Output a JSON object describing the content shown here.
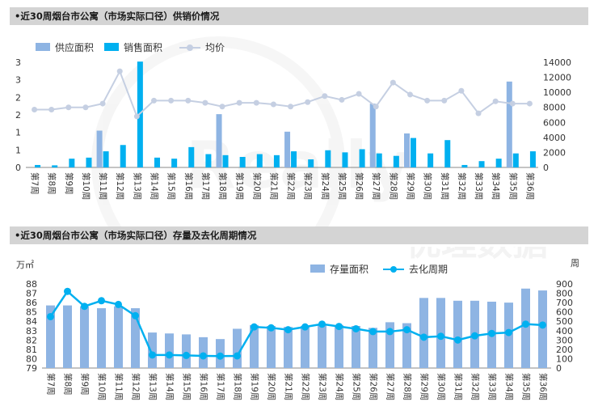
{
  "colors": {
    "supply": "#8eb4e3",
    "sales": "#00b0f0",
    "price": "#c5cfe2",
    "stock": "#8eb4e3",
    "cycle": "#00b0f0",
    "title_bg": "#d4d4d4",
    "watermark": "#eeeeee"
  },
  "watermark": {
    "brand": "Really",
    "cn": "优理数据"
  },
  "chart_data": [
    {
      "type": "bar",
      "title": "•近30周烟台市公寓（市场实际口径）供销价情况",
      "categories": [
        "第7周",
        "第8周",
        "第9周",
        "第10周",
        "第11周",
        "第12周",
        "第13周",
        "第14周",
        "第15周",
        "第16周",
        "第17周",
        "第18周",
        "第19周",
        "第20周",
        "第21周",
        "第22周",
        "第23周",
        "第24周",
        "第25周",
        "第26周",
        "第27周",
        "第28周",
        "第29周",
        "第30周",
        "第31周",
        "第32周",
        "第33周",
        "第34周",
        "第35周",
        "第36周"
      ],
      "left_axis": {
        "ticks": [
          "3",
          "3",
          "2",
          "2",
          "1",
          "1",
          "0"
        ],
        "ylim": [
          0,
          3
        ]
      },
      "right_axis": {
        "ticks": [
          "14000",
          "12000",
          "10000",
          "8000",
          "6000",
          "4000",
          "2000",
          "0"
        ],
        "ylim": [
          0,
          14000
        ]
      },
      "series": [
        {
          "name": "供应面积",
          "axis": "left",
          "type": "bar",
          "values": [
            0,
            0,
            0,
            0,
            1.05,
            0,
            0,
            0,
            0,
            0,
            0,
            1.52,
            0,
            0,
            0,
            1.02,
            0,
            0,
            0,
            0,
            1.82,
            0,
            0.97,
            0,
            0,
            0,
            0,
            0,
            2.45,
            0
          ]
        },
        {
          "name": "销售面积",
          "axis": "left",
          "type": "bar",
          "values": [
            0.07,
            0.06,
            0.25,
            0.28,
            0.46,
            0.64,
            3.02,
            0.28,
            0.25,
            0.58,
            0.38,
            0.35,
            0.3,
            0.38,
            0.35,
            0.46,
            0.23,
            0.49,
            0.43,
            0.52,
            0.4,
            0.33,
            0.84,
            0.4,
            0.78,
            0.07,
            0.18,
            0.25,
            0.4,
            0.46
          ]
        },
        {
          "name": "均价",
          "axis": "right",
          "type": "line",
          "values": [
            7700,
            7700,
            8000,
            8000,
            8500,
            12800,
            6800,
            8900,
            8900,
            8900,
            8600,
            8100,
            8600,
            8600,
            8400,
            8100,
            8700,
            9500,
            9000,
            9800,
            8100,
            11300,
            9700,
            8900,
            8900,
            10200,
            7200,
            8800,
            8500,
            8500
          ]
        }
      ]
    },
    {
      "type": "bar",
      "title": "•近30周烟台市公寓（市场实际口径）存量及去化周期情况",
      "unit_left": "万㎡",
      "unit_right": "周",
      "categories": [
        "第7周",
        "第8周",
        "第9周",
        "第10周",
        "第11周",
        "第12周",
        "第13周",
        "第14周",
        "第15周",
        "第16周",
        "第17周",
        "第18周",
        "第19周",
        "第20周",
        "第21周",
        "第22周",
        "第23周",
        "第24周",
        "第25周",
        "第26周",
        "第27周",
        "第28周",
        "第29周",
        "第30周",
        "第31周",
        "第32周",
        "第33周",
        "第34周",
        "第35周",
        "第36周"
      ],
      "left_axis": {
        "ticks": [
          "88",
          "87",
          "86",
          "85",
          "84",
          "83",
          "82",
          "81",
          "80",
          "79"
        ],
        "ylim": [
          79,
          88
        ]
      },
      "right_axis": {
        "ticks": [
          "900",
          "800",
          "700",
          "600",
          "500",
          "400",
          "300",
          "200",
          "100",
          "0"
        ],
        "ylim": [
          0,
          900
        ]
      },
      "series": [
        {
          "name": "存量面积",
          "axis": "left",
          "type": "bar",
          "values": [
            85.7,
            85.7,
            85.6,
            85.4,
            85.6,
            85.4,
            82.8,
            82.7,
            82.6,
            82.3,
            82.1,
            83.2,
            83.6,
            83.5,
            83.4,
            83.5,
            83.7,
            83.6,
            83.5,
            83.3,
            83.9,
            83.8,
            86.5,
            86.5,
            86.2,
            86.2,
            86.1,
            86.0,
            87.5,
            87.3
          ]
        },
        {
          "name": "去化周期",
          "axis": "right",
          "type": "line",
          "values": [
            550,
            820,
            660,
            720,
            680,
            560,
            140,
            140,
            135,
            130,
            128,
            130,
            440,
            430,
            410,
            440,
            470,
            445,
            420,
            390,
            390,
            410,
            330,
            340,
            300,
            345,
            370,
            380,
            470,
            460
          ]
        }
      ]
    }
  ]
}
